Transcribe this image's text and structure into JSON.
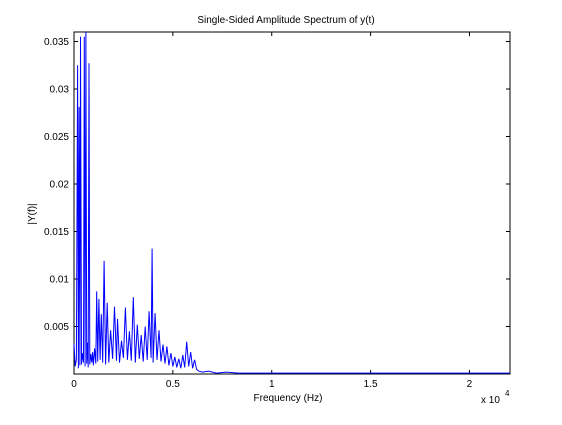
{
  "chart_data": {
    "type": "line",
    "title": "Single-Sided Amplitude Spectrum of y(t)",
    "xlabel": "Frequency (Hz)",
    "ylabel": "|Y(f)|",
    "x_exponent_label": "x 10",
    "x_exponent_power": "4",
    "xlim": [
      0,
      22050
    ],
    "ylim": [
      0,
      0.036
    ],
    "xticks": [
      0,
      5000,
      10000,
      15000,
      20000
    ],
    "xtick_labels": [
      "0",
      "0.5",
      "1",
      "1.5",
      "2"
    ],
    "yticks": [
      0.005,
      0.01,
      0.015,
      0.02,
      0.025,
      0.03,
      0.035
    ],
    "ytick_labels": [
      "0.005",
      "0.01",
      "0.015",
      "0.02",
      "0.025",
      "0.03",
      "0.035"
    ],
    "line_color": "#0000ff",
    "grid": false,
    "series": [
      {
        "x": [
          0,
          60,
          120,
          180,
          220,
          260,
          300,
          330,
          380,
          420,
          480,
          520,
          560,
          600,
          640,
          680,
          720,
          760,
          800,
          850,
          900,
          940,
          980,
          1040,
          1100,
          1150,
          1200,
          1260,
          1320,
          1380,
          1450,
          1520,
          1600,
          1680,
          1760,
          1850,
          1950,
          2050,
          2150,
          2200,
          2300,
          2400,
          2500,
          2600,
          2700,
          2800,
          2900,
          3000,
          3100,
          3200,
          3300,
          3400,
          3500,
          3600,
          3700,
          3800,
          3900,
          3950,
          4000,
          4100,
          4200,
          4300,
          4400,
          4500,
          4600,
          4700,
          4800,
          4900,
          5000,
          5100,
          5200,
          5300,
          5400,
          5500,
          5600,
          5700,
          5800,
          5900,
          6000,
          6100,
          6200,
          6300,
          6500,
          6800,
          7200,
          7700,
          8300,
          9000,
          10000,
          12000,
          15000,
          18000,
          22050
        ],
        "y": [
          0.0032,
          0.0008,
          0.0015,
          0.0325,
          0.0006,
          0.0281,
          0.0009,
          0.0355,
          0.001,
          0.0022,
          0.0012,
          0.0355,
          0.0008,
          0.036,
          0.0011,
          0.0033,
          0.0007,
          0.0327,
          0.001,
          0.0021,
          0.0012,
          0.0023,
          0.0009,
          0.0027,
          0.0011,
          0.0087,
          0.0013,
          0.0079,
          0.0015,
          0.0063,
          0.0012,
          0.0119,
          0.001,
          0.0075,
          0.0012,
          0.0046,
          0.0016,
          0.0071,
          0.0014,
          0.0058,
          0.0012,
          0.0035,
          0.0017,
          0.007,
          0.0015,
          0.0045,
          0.0014,
          0.0081,
          0.0012,
          0.0052,
          0.0016,
          0.0041,
          0.0013,
          0.005,
          0.0015,
          0.0066,
          0.0017,
          0.0132,
          0.0012,
          0.0064,
          0.0015,
          0.0046,
          0.0013,
          0.0031,
          0.0011,
          0.0029,
          0.0009,
          0.0022,
          0.0008,
          0.0018,
          0.0007,
          0.0016,
          0.0006,
          0.002,
          0.0007,
          0.0034,
          0.0008,
          0.0023,
          0.0006,
          0.0015,
          0.0005,
          0.0003,
          0.0002,
          0.0003,
          0.0001,
          0.0002,
          0.0001,
          0.0001,
          0.0001,
          0.0001,
          0.0001,
          0.0001,
          0.0001
        ]
      }
    ]
  }
}
